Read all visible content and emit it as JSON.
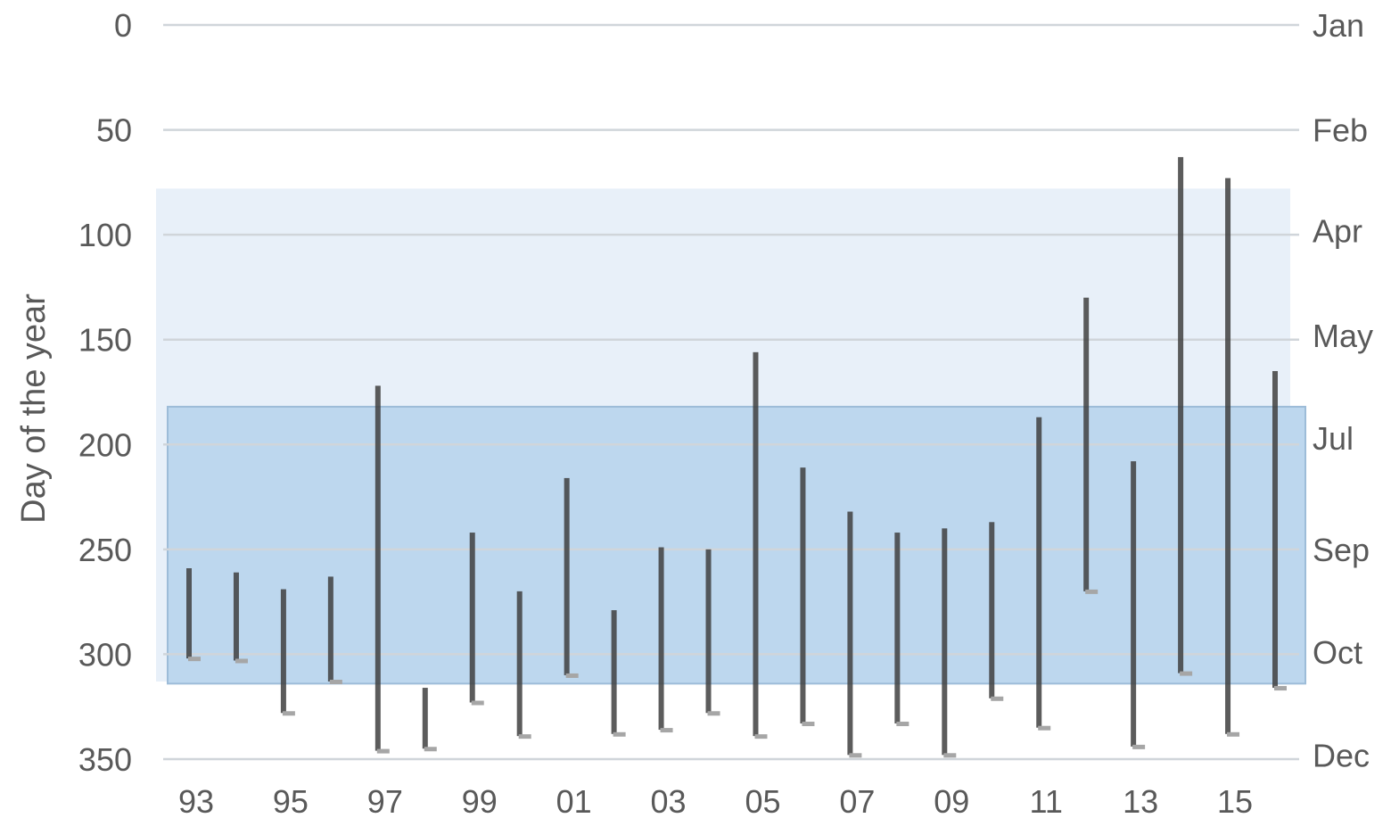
{
  "chart_data": {
    "type": "range-bar",
    "ylabel": "Day of the year",
    "y_inverted": true,
    "ylim": [
      0,
      350
    ],
    "y_ticks": [
      "0",
      "50",
      "100",
      "150",
      "200",
      "250",
      "300",
      "350"
    ],
    "right_ticks": [
      {
        "label": "Jan",
        "day": 0
      },
      {
        "label": "Feb",
        "day": 50
      },
      {
        "label": "Apr",
        "day": 98
      },
      {
        "label": "May",
        "day": 148
      },
      {
        "label": "Jul",
        "day": 197
      },
      {
        "label": "Sep",
        "day": 250
      },
      {
        "label": "Oct",
        "day": 299
      },
      {
        "label": "Dec",
        "day": 348
      }
    ],
    "x_tick_labels": [
      "93",
      "95",
      "97",
      "99",
      "01",
      "03",
      "05",
      "07",
      "09",
      "11",
      "13",
      "15"
    ],
    "x_tick_years": [
      1993,
      1995,
      1997,
      1999,
      2001,
      2003,
      2005,
      2007,
      2009,
      2011,
      2013,
      2015
    ],
    "grid": true,
    "bands": [
      {
        "from_day": 78,
        "to_day": 313,
        "color": "#e8f0f9"
      },
      {
        "from_day": 182,
        "to_day": 314,
        "color": "#bdd7ee"
      }
    ],
    "bar_color": "#404040",
    "cap_color": "#a6a6a6",
    "bars": [
      {
        "year": 1993,
        "start_day": 259,
        "end_day": 302
      },
      {
        "year": 1994,
        "start_day": 261,
        "end_day": 303
      },
      {
        "year": 1995,
        "start_day": 269,
        "end_day": 328
      },
      {
        "year": 1996,
        "start_day": 263,
        "end_day": 313
      },
      {
        "year": 1997,
        "start_day": 172,
        "end_day": 346
      },
      {
        "year": 1998,
        "start_day": 316,
        "end_day": 345
      },
      {
        "year": 1999,
        "start_day": 242,
        "end_day": 323
      },
      {
        "year": 2000,
        "start_day": 270,
        "end_day": 339
      },
      {
        "year": 2001,
        "start_day": 216,
        "end_day": 310
      },
      {
        "year": 2002,
        "start_day": 279,
        "end_day": 338
      },
      {
        "year": 2003,
        "start_day": 249,
        "end_day": 336
      },
      {
        "year": 2004,
        "start_day": 250,
        "end_day": 328
      },
      {
        "year": 2005,
        "start_day": 156,
        "end_day": 339
      },
      {
        "year": 2006,
        "start_day": 211,
        "end_day": 333
      },
      {
        "year": 2007,
        "start_day": 232,
        "end_day": 348
      },
      {
        "year": 2008,
        "start_day": 242,
        "end_day": 333
      },
      {
        "year": 2009,
        "start_day": 240,
        "end_day": 348
      },
      {
        "year": 2010,
        "start_day": 237,
        "end_day": 321
      },
      {
        "year": 2011,
        "start_day": 187,
        "end_day": 335
      },
      {
        "year": 2012,
        "start_day": 130,
        "end_day": 270
      },
      {
        "year": 2013,
        "start_day": 208,
        "end_day": 344
      },
      {
        "year": 2014,
        "start_day": 63,
        "end_day": 309
      },
      {
        "year": 2015,
        "start_day": 73,
        "end_day": 338
      },
      {
        "year": 2016,
        "start_day": 165,
        "end_day": 316
      }
    ]
  }
}
